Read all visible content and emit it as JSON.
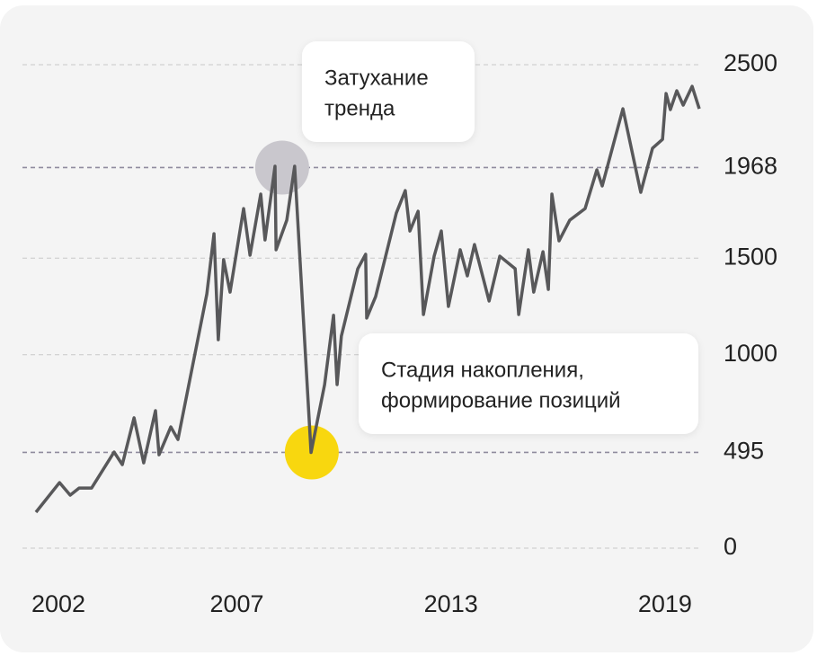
{
  "chart_data": {
    "type": "line",
    "x": [
      2001.37,
      2002.03,
      2002.33,
      2002.58,
      2002.93,
      2003.56,
      2003.79,
      2004.12,
      2004.39,
      2004.72,
      2004.82,
      2005.15,
      2005.35,
      2006.16,
      2006.36,
      2006.48,
      2006.63,
      2006.81,
      2007.19,
      2007.37,
      2007.67,
      2007.79,
      2008.07,
      2008.1,
      2008.4,
      2008.62,
      2009.08,
      2009.46,
      2009.71,
      2009.81,
      2009.93,
      2010.39,
      2010.61,
      2010.64,
      2010.89,
      2011.47,
      2011.72,
      2011.85,
      2012.08,
      2012.23,
      2012.53,
      2012.73,
      2012.93,
      2013.26,
      2013.46,
      2013.66,
      2014.07,
      2014.37,
      2014.8,
      2014.9,
      2015.17,
      2015.32,
      2015.58,
      2015.73,
      2015.83,
      2016.03,
      2016.33,
      2016.76,
      2017.09,
      2017.24,
      2017.82,
      2018.32,
      2018.65,
      2018.93,
      2019.03,
      2019.15,
      2019.33,
      2019.51,
      2019.76,
      2019.96
    ],
    "series": [
      {
        "color": "#58585a",
        "values": [
          186,
          339,
          274,
          311,
          311,
          497,
          432,
          674,
          441,
          711,
          483,
          627,
          562,
          1315,
          1626,
          1078,
          1492,
          1324,
          1756,
          1515,
          1831,
          1594,
          1975,
          1543,
          1696,
          1975,
          495,
          846,
          1204,
          846,
          1097,
          1445,
          1520,
          1190,
          1301,
          1733,
          1849,
          1640,
          1742,
          1208,
          1510,
          1640,
          1250,
          1543,
          1408,
          1570,
          1278,
          1510,
          1445,
          1208,
          1543,
          1324,
          1533,
          1338,
          1831,
          1589,
          1696,
          1756,
          1956,
          1873,
          2272,
          1840,
          2068,
          2114,
          2351,
          2268,
          2365,
          2291,
          2388,
          2272
        ]
      }
    ],
    "xlim": [
      2001,
      2020
    ],
    "xticks": [
      2002,
      2007,
      2013,
      2019
    ],
    "ylim": [
      0,
      2500
    ],
    "yticks": [
      0,
      495,
      1000,
      1500,
      1968,
      2500
    ],
    "highlight_yticks": [
      495,
      1968
    ],
    "grid": true,
    "annotations": [
      {
        "lines": [
          "Затухание",
          "тренда"
        ],
        "x": 2008.27,
        "y": 1968,
        "color": "#c9c7cd"
      },
      {
        "lines": [
          "Стадия накопления,",
          "формирование позиций"
        ],
        "x": 2009.1,
        "y": 495,
        "color": "#f8d70f"
      }
    ]
  }
}
